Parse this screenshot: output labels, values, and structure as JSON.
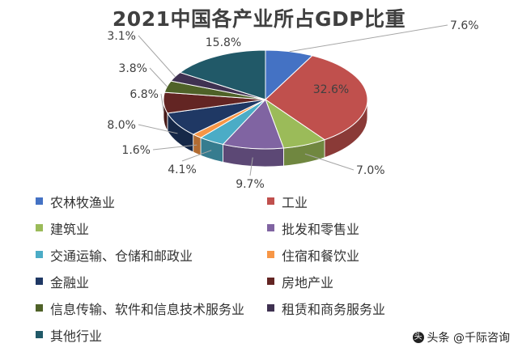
{
  "chart_data": {
    "type": "pie",
    "title": "2021中国各产业所占GDP比重",
    "categories": [
      "农林牧渔业",
      "工业",
      "建筑业",
      "批发和零售业",
      "交通运输、仓储和邮政业",
      "住宿和餐饮业",
      "金融业",
      "房地产业",
      "信息传输、软件和信息技术服务业",
      "租赁和商务服务业",
      "其他行业"
    ],
    "values": [
      7.6,
      32.6,
      7.0,
      9.7,
      4.1,
      1.6,
      8.0,
      6.8,
      3.8,
      3.1,
      15.8
    ],
    "labels": [
      "7.6%",
      "32.6%",
      "7.0%",
      "9.7%",
      "4.1%",
      "1.6%",
      "8.0%",
      "6.8%",
      "3.8%",
      "3.1%",
      "15.8%"
    ],
    "colors": [
      "#4472C4",
      "#C0504D",
      "#9BBB59",
      "#8064A2",
      "#4BACC6",
      "#F79646",
      "#1F3864",
      "#632523",
      "#4F6228",
      "#3F3151",
      "#215968"
    ],
    "legend_position": "bottom",
    "style": "3d-pie"
  },
  "watermark": {
    "text": "头条 @千际咨询",
    "icon": "toutiao-icon"
  }
}
